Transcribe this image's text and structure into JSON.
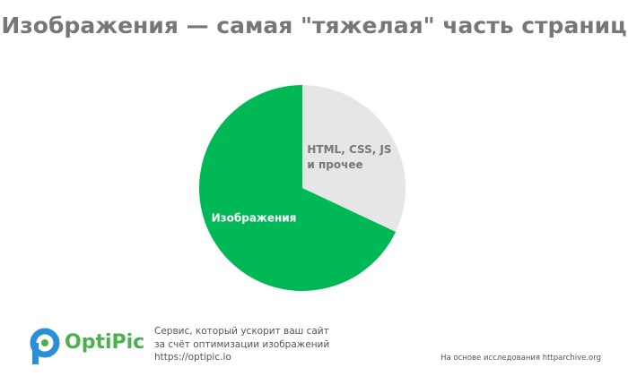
{
  "chart_data": {
    "type": "pie",
    "title": "Изображения — самая \"тяжелая\" часть страниц",
    "categories": [
      "HTML, CSS, JS и прочее",
      "Изображения"
    ],
    "values": [
      32,
      68
    ],
    "colors": [
      "#e6e6e6",
      "#00b956"
    ],
    "label_colors": [
      "#777777",
      "#ffffff"
    ]
  },
  "footer": {
    "logo": "OptiPic",
    "tagline": [
      "Сервис, который ускорит ваш сайт",
      "за счёт оптимизации изображений",
      "https://optipic.io"
    ],
    "source": "На основе исследования httparchive.org"
  }
}
